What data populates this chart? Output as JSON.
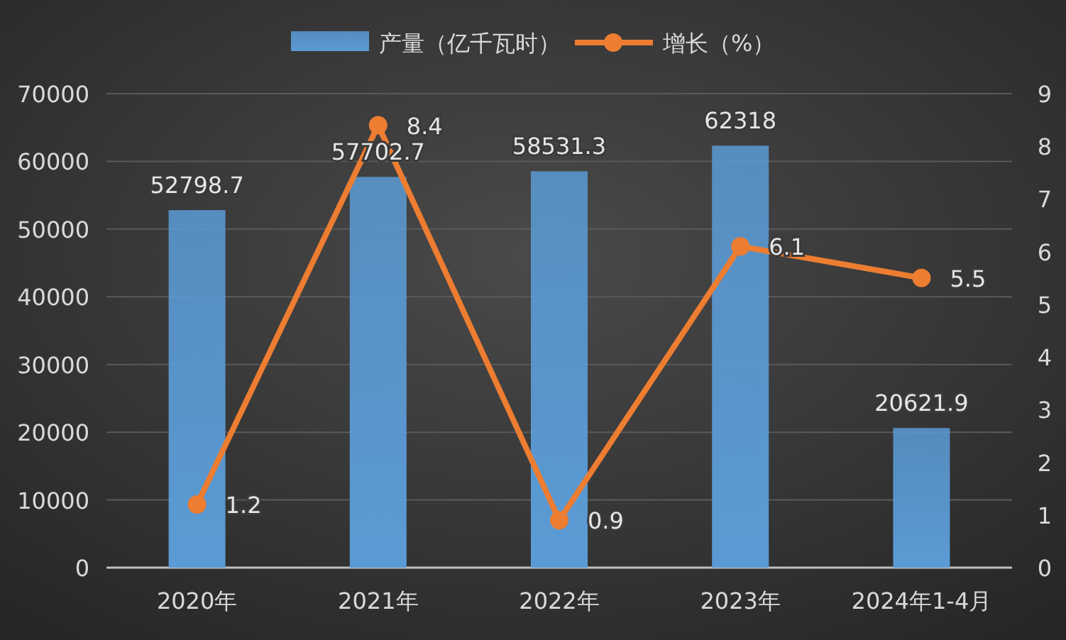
{
  "chart_data": {
    "type": "bar",
    "categories": [
      "2020年",
      "2021年",
      "2022年",
      "2023年",
      "2024年1-4月"
    ],
    "series": [
      {
        "name": "产量（亿千瓦时）",
        "color": "#5b9bd5",
        "values": [
          52798.7,
          57702.7,
          58531.3,
          62318,
          20621.9
        ]
      },
      {
        "name": "增长（%）",
        "type": "line",
        "axis": "y2",
        "color": "#ed7d31",
        "marker": "circle",
        "values": [
          1.2,
          8.4,
          0.9,
          6.1,
          5.5
        ]
      }
    ],
    "ylim": [
      0,
      70000
    ],
    "yticks": [
      0,
      10000,
      20000,
      30000,
      40000,
      50000,
      60000,
      70000
    ],
    "y2lim": [
      0,
      9
    ],
    "y2ticks": [
      0,
      1,
      2,
      3,
      4,
      5,
      6,
      7,
      8,
      9
    ],
    "grid": "y",
    "legend": "top",
    "data_labels": true
  }
}
